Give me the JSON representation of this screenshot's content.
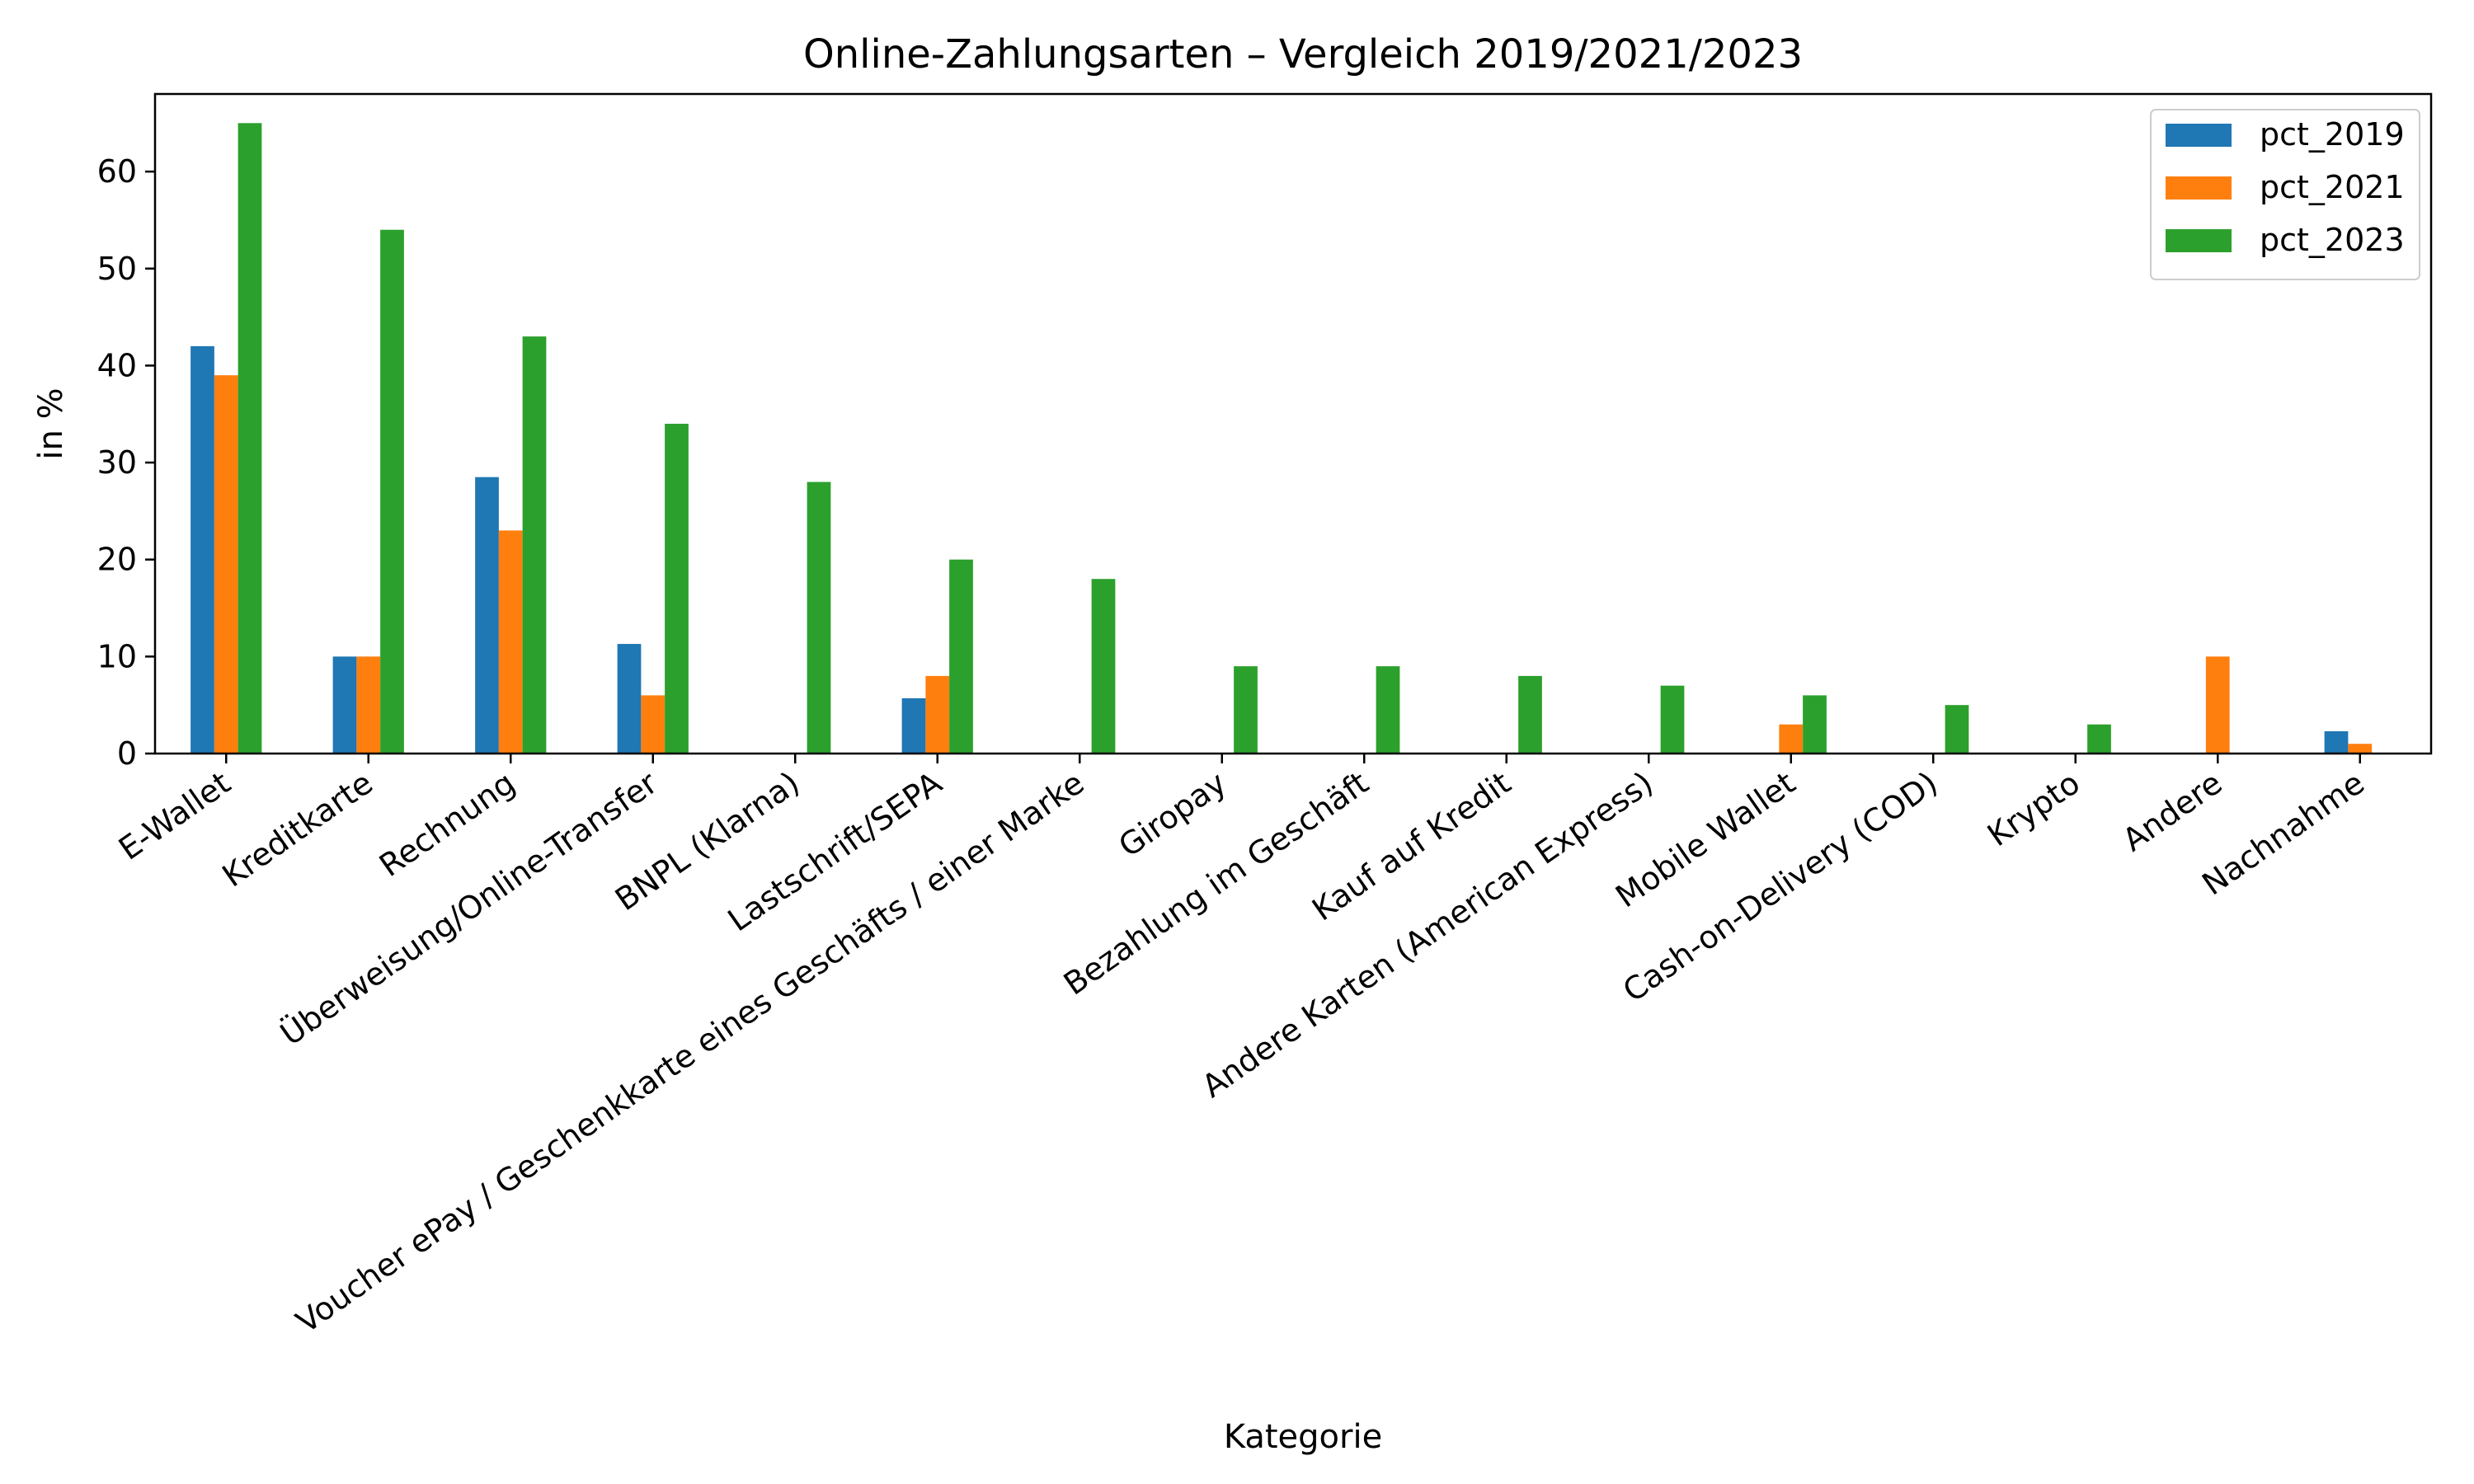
{
  "chart_data": {
    "type": "bar",
    "title": "Online-Zahlungsarten – Vergleich 2019/2021/2023",
    "xlabel": "Kategorie",
    "ylabel": "in %",
    "ylim": [
      0,
      68
    ],
    "yticks": [
      0,
      10,
      20,
      30,
      40,
      50,
      60
    ],
    "grid": false,
    "legend_position": "top-right",
    "categories": [
      "E-Wallet",
      "Kreditkarte",
      "Rechnung",
      "Überweisung/Online-Transfer",
      "BNPL (Klarna)",
      "Lastschrift/SEPA",
      "Voucher ePay / Geschenkkarte eines Geschäfts / einer Marke",
      "Giropay",
      "Bezahlung im Geschäft",
      "Kauf auf Kredit",
      "Andere Karten (American Express)",
      "Mobile Wallet",
      "Cash-on-Delivery (COD)",
      "Krypto",
      "Andere",
      "Nachnahme"
    ],
    "series": [
      {
        "name": "pct_2019",
        "color": "#1f77b4",
        "values": [
          42,
          10,
          28.5,
          11.3,
          null,
          5.7,
          null,
          null,
          null,
          null,
          null,
          null,
          null,
          null,
          null,
          2.3
        ]
      },
      {
        "name": "pct_2021",
        "color": "#ff7f0e",
        "values": [
          39,
          10,
          23,
          6,
          null,
          8,
          null,
          null,
          null,
          null,
          null,
          3,
          null,
          null,
          10,
          1
        ]
      },
      {
        "name": "pct_2023",
        "color": "#2ca02c",
        "values": [
          65,
          54,
          43,
          34,
          28,
          20,
          18,
          9,
          9,
          8,
          7,
          6,
          5,
          3,
          null,
          null
        ]
      }
    ]
  }
}
